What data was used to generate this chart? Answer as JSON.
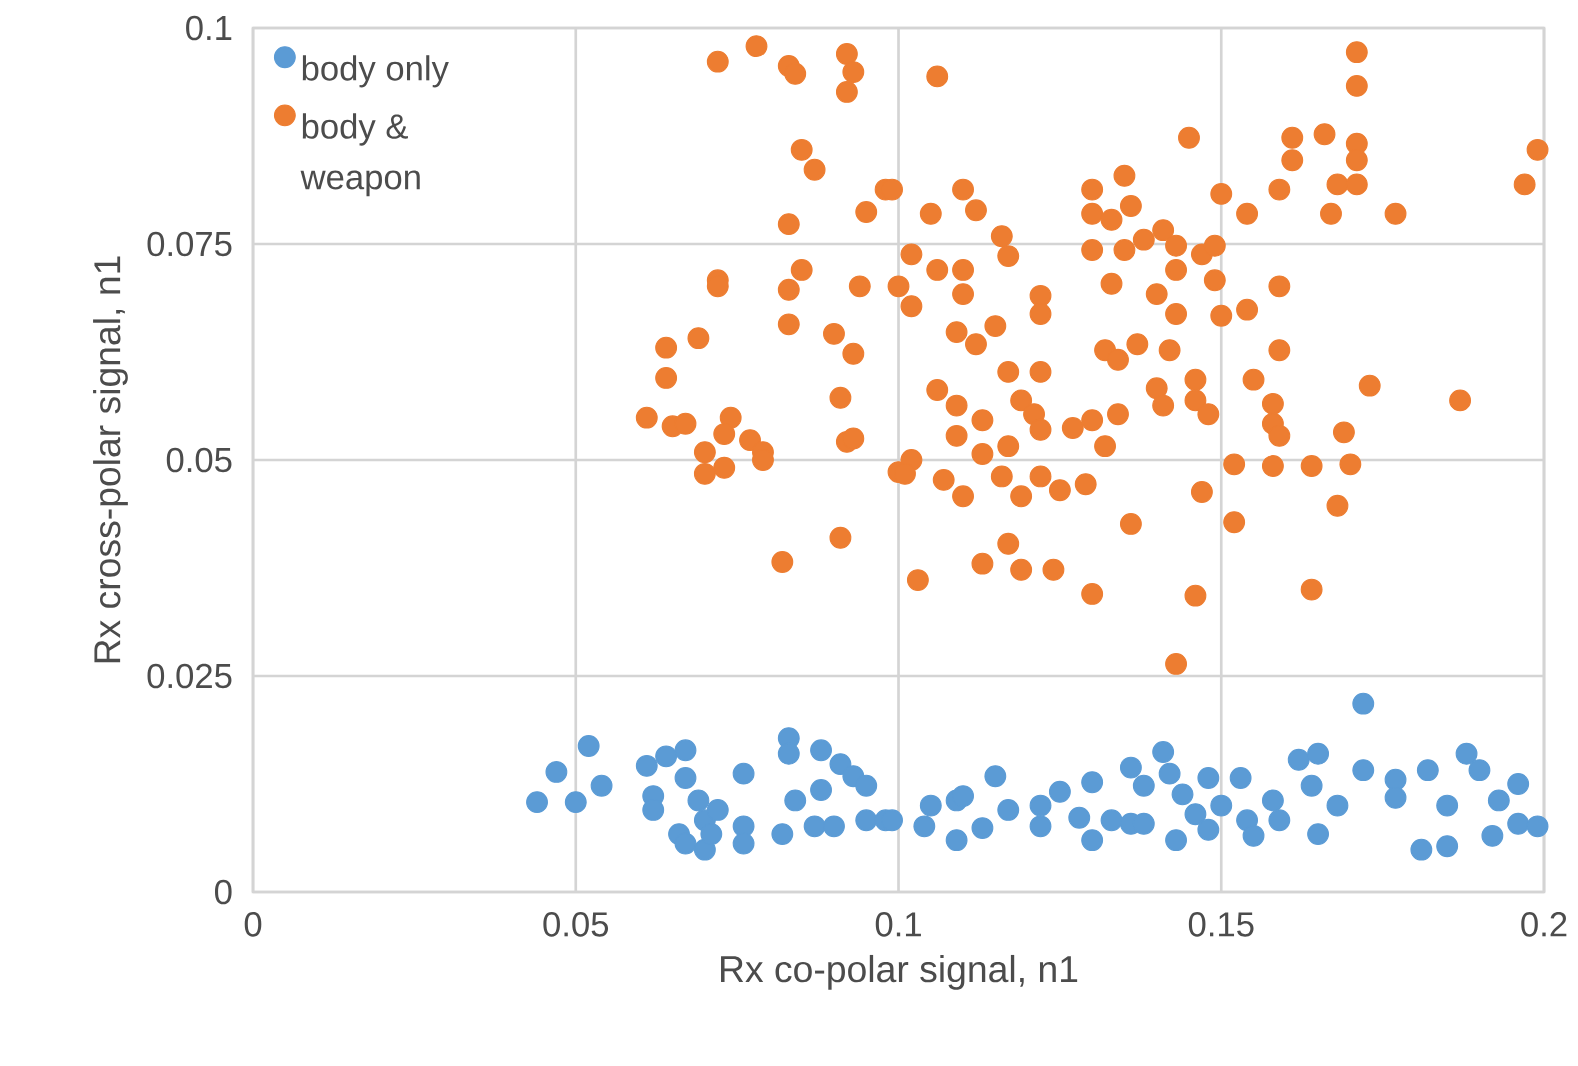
{
  "chart_data": {
    "type": "scatter",
    "xlabel": "Rx co-polar signal, n1",
    "ylabel": "Rx cross-polar signal, n1",
    "xlim": [
      0,
      0.2
    ],
    "ylim": [
      0,
      0.1
    ],
    "xticks": [
      0,
      0.05,
      0.1,
      0.15,
      0.2
    ],
    "yticks": [
      0,
      0.025,
      0.05,
      0.075,
      0.1
    ],
    "grid": true,
    "legend": "top left",
    "marker": "circle",
    "series": [
      {
        "name": "body only",
        "color": "#5b9bd5",
        "x": [
          0.044,
          0.047,
          0.05,
          0.052,
          0.054,
          0.061,
          0.062,
          0.062,
          0.064,
          0.067,
          0.067,
          0.066,
          0.067,
          0.069,
          0.07,
          0.07,
          0.071,
          0.072,
          0.076,
          0.076,
          0.076,
          0.083,
          0.083,
          0.084,
          0.082,
          0.088,
          0.088,
          0.091,
          0.093,
          0.095,
          0.087,
          0.09,
          0.095,
          0.098,
          0.099,
          0.104,
          0.105,
          0.109,
          0.109,
          0.11,
          0.113,
          0.115,
          0.117,
          0.122,
          0.122,
          0.125,
          0.128,
          0.13,
          0.13,
          0.133,
          0.136,
          0.138,
          0.136,
          0.138,
          0.141,
          0.142,
          0.143,
          0.144,
          0.146,
          0.148,
          0.148,
          0.15,
          0.153,
          0.154,
          0.155,
          0.158,
          0.159,
          0.162,
          0.165,
          0.164,
          0.165,
          0.168,
          0.172,
          0.172,
          0.177,
          0.177,
          0.181,
          0.182,
          0.185,
          0.185,
          0.188,
          0.19,
          0.193,
          0.192,
          0.196,
          0.196,
          0.199
        ],
        "values": [
          0.0104,
          0.0139,
          0.0104,
          0.0169,
          0.0123,
          0.0146,
          0.0111,
          0.0095,
          0.0157,
          0.0164,
          0.0132,
          0.0067,
          0.0056,
          0.0106,
          0.0083,
          0.0049,
          0.0067,
          0.0095,
          0.0137,
          0.0076,
          0.0056,
          0.0178,
          0.016,
          0.0106,
          0.0067,
          0.0164,
          0.0118,
          0.0148,
          0.0134,
          0.0123,
          0.0076,
          0.0076,
          0.0083,
          0.0083,
          0.0083,
          0.0076,
          0.01,
          0.0106,
          0.006,
          0.0111,
          0.0074,
          0.0134,
          0.0095,
          0.0076,
          0.01,
          0.0116,
          0.0086,
          0.006,
          0.0127,
          0.0083,
          0.0079,
          0.0079,
          0.0144,
          0.0123,
          0.0162,
          0.0137,
          0.006,
          0.0113,
          0.009,
          0.0132,
          0.0072,
          0.01,
          0.0132,
          0.0083,
          0.0065,
          0.0106,
          0.0083,
          0.0153,
          0.016,
          0.0123,
          0.0067,
          0.01,
          0.0218,
          0.0141,
          0.013,
          0.0109,
          0.0049,
          0.0141,
          0.0053,
          0.01,
          0.016,
          0.0141,
          0.0106,
          0.0065,
          0.0125,
          0.0079,
          0.0076
        ]
      },
      {
        "name": "body & weapon",
        "color": "#ed7d31",
        "x": [
          0.072,
          0.078,
          0.083,
          0.084,
          0.092,
          0.093,
          0.092,
          0.085,
          0.087,
          0.098,
          0.095,
          0.083,
          0.072,
          0.072,
          0.085,
          0.083,
          0.094,
          0.083,
          0.09,
          0.093,
          0.069,
          0.064,
          0.064,
          0.091,
          0.061,
          0.065,
          0.067,
          0.074,
          0.073,
          0.077,
          0.079,
          0.07,
          0.073,
          0.07,
          0.092,
          0.093,
          0.079,
          0.082,
          0.091,
          0.1,
          0.106,
          0.171,
          0.171,
          0.145,
          0.161,
          0.166,
          0.171,
          0.199,
          0.197,
          0.161,
          0.159,
          0.167,
          0.171,
          0.168,
          0.171,
          0.177,
          0.15,
          0.154,
          0.099,
          0.105,
          0.11,
          0.112,
          0.116,
          0.117,
          0.13,
          0.135,
          0.136,
          0.13,
          0.133,
          0.13,
          0.135,
          0.138,
          0.141,
          0.143,
          0.143,
          0.147,
          0.149,
          0.149,
          0.14,
          0.143,
          0.133,
          0.15,
          0.154,
          0.159,
          0.159,
          0.102,
          0.1,
          0.102,
          0.106,
          0.11,
          0.11,
          0.109,
          0.112,
          0.115,
          0.122,
          0.122,
          0.132,
          0.134,
          0.137,
          0.142,
          0.117,
          0.122,
          0.106,
          0.109,
          0.113,
          0.119,
          0.121,
          0.122,
          0.127,
          0.13,
          0.134,
          0.132,
          0.14,
          0.141,
          0.146,
          0.146,
          0.148,
          0.155,
          0.158,
          0.158,
          0.159,
          0.169,
          0.173,
          0.187,
          0.109,
          0.113,
          0.117,
          0.102,
          0.101,
          0.107,
          0.11,
          0.116,
          0.119,
          0.122,
          0.125,
          0.129,
          0.136,
          0.147,
          0.152,
          0.168,
          0.103,
          0.113,
          0.117,
          0.119,
          0.124,
          0.13,
          0.146,
          0.164,
          0.143,
          0.152,
          0.158,
          0.164,
          0.17
        ],
        "values": [
          0.0961,
          0.0979,
          0.0956,
          0.0947,
          0.097,
          0.0949,
          0.0926,
          0.0859,
          0.0836,
          0.0813,
          0.0787,
          0.0773,
          0.0708,
          0.0701,
          0.072,
          0.0697,
          0.0701,
          0.0657,
          0.0646,
          0.0623,
          0.0641,
          0.063,
          0.0595,
          0.0572,
          0.0549,
          0.0539,
          0.0542,
          0.0549,
          0.053,
          0.0523,
          0.0509,
          0.0509,
          0.0491,
          0.0484,
          0.0521,
          0.0525,
          0.05,
          0.0382,
          0.041,
          0.0486,
          0.0944,
          0.0972,
          0.0933,
          0.0873,
          0.0873,
          0.0877,
          0.0866,
          0.0859,
          0.0819,
          0.0847,
          0.0813,
          0.0785,
          0.0847,
          0.0819,
          0.0819,
          0.0785,
          0.0808,
          0.0785,
          0.0813,
          0.0785,
          0.0813,
          0.0789,
          0.0759,
          0.0736,
          0.0813,
          0.0829,
          0.0794,
          0.0785,
          0.0778,
          0.0743,
          0.0743,
          0.0755,
          0.0766,
          0.0748,
          0.072,
          0.0738,
          0.0748,
          0.0708,
          0.0692,
          0.0669,
          0.0704,
          0.0667,
          0.0674,
          0.0701,
          0.0627,
          0.0738,
          0.0701,
          0.0678,
          0.072,
          0.072,
          0.0692,
          0.0648,
          0.0634,
          0.0655,
          0.069,
          0.0669,
          0.0627,
          0.0616,
          0.0634,
          0.0627,
          0.0602,
          0.0602,
          0.0581,
          0.0563,
          0.0546,
          0.0569,
          0.0553,
          0.0535,
          0.0537,
          0.0546,
          0.0553,
          0.0516,
          0.0583,
          0.0563,
          0.0593,
          0.0569,
          0.0553,
          0.0593,
          0.0565,
          0.0542,
          0.0528,
          0.0532,
          0.0586,
          0.0569,
          0.0528,
          0.0507,
          0.0516,
          0.05,
          0.0484,
          0.0477,
          0.0458,
          0.0481,
          0.0458,
          0.0481,
          0.0465,
          0.0472,
          0.0426,
          0.0463,
          0.0428,
          0.0447,
          0.0361,
          0.038,
          0.0403,
          0.0373,
          0.0373,
          0.0345,
          0.0343,
          0.035,
          0.0264,
          0.0495,
          0.0493,
          0.0493,
          0.0495
        ]
      }
    ]
  }
}
